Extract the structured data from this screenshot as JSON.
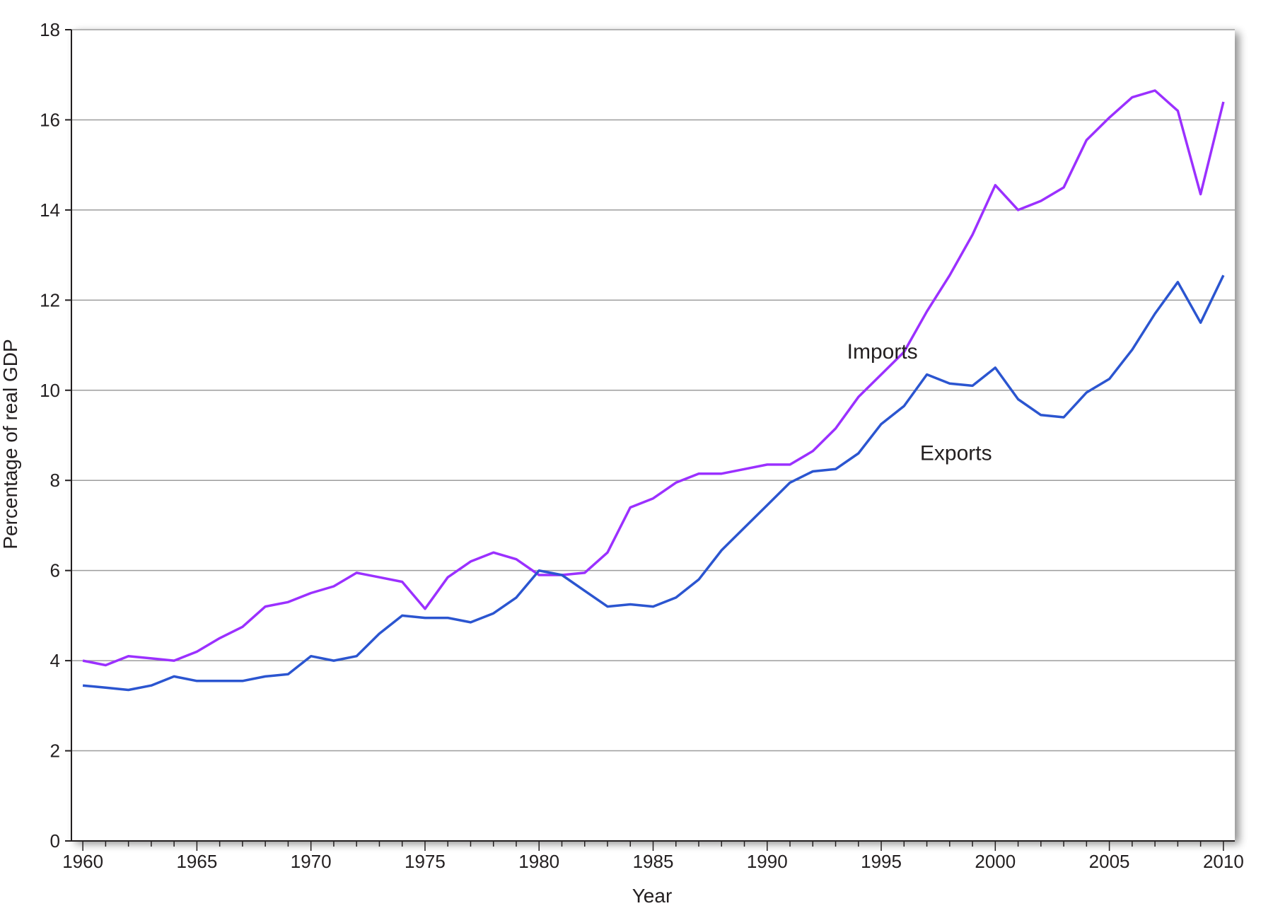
{
  "chart_data": {
    "type": "line",
    "xlabel": "Year",
    "ylabel": "Percentage of real GDP",
    "xlim": [
      1959.5,
      2010.5
    ],
    "ylim": [
      0,
      18
    ],
    "x_ticks": [
      1960,
      1965,
      1970,
      1975,
      1980,
      1985,
      1990,
      1995,
      2000,
      2005,
      2010
    ],
    "y_ticks": [
      0,
      2,
      4,
      6,
      8,
      10,
      12,
      14,
      16,
      18
    ],
    "grid": "horizontal",
    "x": [
      1960,
      1961,
      1962,
      1963,
      1964,
      1965,
      1966,
      1967,
      1968,
      1969,
      1970,
      1971,
      1972,
      1973,
      1974,
      1975,
      1976,
      1977,
      1978,
      1979,
      1980,
      1981,
      1982,
      1983,
      1984,
      1985,
      1986,
      1987,
      1988,
      1989,
      1990,
      1991,
      1992,
      1993,
      1994,
      1995,
      1996,
      1997,
      1998,
      1999,
      2000,
      2001,
      2002,
      2003,
      2004,
      2005,
      2006,
      2007,
      2008,
      2009,
      2010
    ],
    "series": [
      {
        "name": "Imports",
        "color": "#9b30ff",
        "label_anchor": [
          1993.5,
          10.7
        ],
        "values": [
          4.0,
          3.9,
          4.1,
          4.05,
          4.0,
          4.2,
          4.5,
          4.75,
          5.2,
          5.3,
          5.5,
          5.65,
          5.95,
          5.85,
          5.75,
          5.15,
          5.85,
          6.2,
          6.4,
          6.25,
          5.9,
          5.9,
          5.95,
          6.4,
          7.4,
          7.6,
          7.95,
          8.15,
          8.15,
          8.25,
          8.35,
          8.35,
          8.65,
          9.15,
          9.85,
          10.35,
          10.85,
          11.75,
          12.55,
          13.45,
          14.55,
          14.0,
          14.2,
          14.5,
          15.55,
          16.05,
          16.5,
          16.65,
          16.2,
          14.35,
          16.4
        ]
      },
      {
        "name": "Exports",
        "color": "#2b55d0",
        "label_anchor": [
          1996.7,
          8.45
        ],
        "values": [
          3.45,
          3.4,
          3.35,
          3.45,
          3.65,
          3.55,
          3.55,
          3.55,
          3.65,
          3.7,
          4.1,
          4.0,
          4.1,
          4.6,
          5.0,
          4.95,
          4.95,
          4.85,
          5.05,
          5.4,
          6.0,
          5.9,
          5.55,
          5.2,
          5.25,
          5.2,
          5.4,
          5.8,
          6.45,
          6.95,
          7.45,
          7.95,
          8.2,
          8.25,
          8.6,
          9.25,
          9.65,
          10.35,
          10.15,
          10.1,
          10.5,
          9.8,
          9.45,
          9.4,
          9.95,
          10.25,
          10.9,
          11.7,
          12.4,
          11.5,
          12.55
        ]
      }
    ]
  }
}
